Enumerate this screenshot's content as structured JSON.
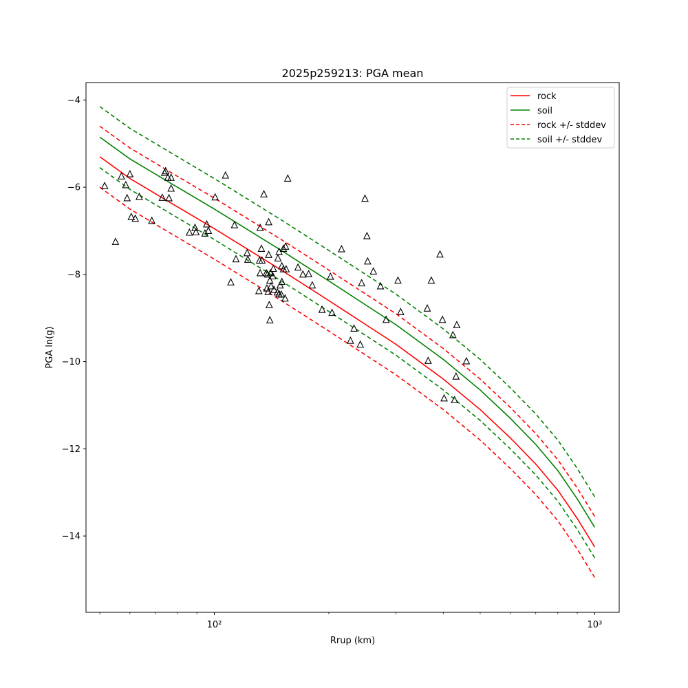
{
  "chart_data": {
    "type": "scatter",
    "title": "2025p259213: PGA mean",
    "xlabel": "Rrup (km)",
    "ylabel": "PGA ln(g)",
    "xscale": "log",
    "xlim": [
      46,
      1160
    ],
    "ylim": [
      -15.75,
      -3.6
    ],
    "x_ticks": [
      {
        "value": 100,
        "label": "10²"
      },
      {
        "value": 1000,
        "label": "10³"
      }
    ],
    "y_ticks": [
      {
        "value": -14,
        "label": "−14"
      },
      {
        "value": -12,
        "label": "−12"
      },
      {
        "value": -10,
        "label": "−10"
      },
      {
        "value": -8,
        "label": "−8"
      },
      {
        "value": -6,
        "label": "−6"
      },
      {
        "value": -4,
        "label": "−4"
      }
    ],
    "grid": false,
    "legend_position": "top-right",
    "series": [
      {
        "name": "rock",
        "kind": "line",
        "style": "solid",
        "color": "#ff0000",
        "x": [
          50,
          60,
          80,
          100,
          150,
          200,
          300,
          400,
          500,
          600,
          700,
          800,
          900,
          1000
        ],
        "y": [
          -5.3,
          -5.8,
          -6.45,
          -6.95,
          -7.9,
          -8.6,
          -9.6,
          -10.4,
          -11.1,
          -11.75,
          -12.35,
          -12.95,
          -13.6,
          -14.25
        ]
      },
      {
        "name": "soil",
        "kind": "line",
        "style": "solid",
        "color": "#008000",
        "x": [
          50,
          60,
          80,
          100,
          150,
          200,
          300,
          400,
          500,
          600,
          700,
          800,
          900,
          1000
        ],
        "y": [
          -4.85,
          -5.35,
          -6.0,
          -6.5,
          -7.45,
          -8.15,
          -9.15,
          -9.95,
          -10.65,
          -11.3,
          -11.9,
          -12.5,
          -13.15,
          -13.8
        ]
      },
      {
        "name": "rock +/- stddev",
        "kind": "band",
        "style": "dashed",
        "color": "#ff0000",
        "x": [
          50,
          60,
          80,
          100,
          150,
          200,
          300,
          400,
          500,
          600,
          700,
          800,
          900,
          1000
        ],
        "upper": [
          -4.6,
          -5.1,
          -5.75,
          -6.25,
          -7.2,
          -7.9,
          -8.9,
          -9.7,
          -10.4,
          -11.05,
          -11.65,
          -12.25,
          -12.9,
          -13.55
        ],
        "lower": [
          -6.0,
          -6.5,
          -7.15,
          -7.65,
          -8.6,
          -9.3,
          -10.3,
          -11.1,
          -11.8,
          -12.45,
          -13.05,
          -13.65,
          -14.3,
          -14.95
        ]
      },
      {
        "name": "soil +/- stddev",
        "kind": "band",
        "style": "dashed",
        "color": "#008000",
        "x": [
          50,
          60,
          80,
          100,
          150,
          200,
          300,
          400,
          500,
          600,
          700,
          800,
          900,
          1000
        ],
        "upper": [
          -4.15,
          -4.65,
          -5.3,
          -5.8,
          -6.75,
          -7.45,
          -8.45,
          -9.25,
          -9.95,
          -10.6,
          -11.2,
          -11.8,
          -12.45,
          -13.1
        ],
        "lower": [
          -5.55,
          -6.05,
          -6.7,
          -7.2,
          -8.15,
          -8.85,
          -9.85,
          -10.65,
          -11.35,
          -12.0,
          -12.6,
          -13.2,
          -13.85,
          -14.5
        ]
      }
    ],
    "observations": {
      "marker": "triangle",
      "color": "#000000",
      "points": [
        [
          51.5,
          -5.97
        ],
        [
          55,
          -7.25
        ],
        [
          57,
          -5.75
        ],
        [
          58.5,
          -5.95
        ],
        [
          59,
          -6.25
        ],
        [
          60,
          -5.7
        ],
        [
          60.5,
          -6.68
        ],
        [
          62,
          -6.72
        ],
        [
          63.5,
          -6.22
        ],
        [
          68.5,
          -6.77
        ],
        [
          73,
          -6.24
        ],
        [
          74,
          -5.67
        ],
        [
          74.5,
          -5.63
        ],
        [
          75.5,
          -5.78
        ],
        [
          76,
          -6.25
        ],
        [
          77,
          -5.78
        ],
        [
          77,
          -6.03
        ],
        [
          86,
          -7.04
        ],
        [
          89,
          -6.93
        ],
        [
          89.5,
          -7.03
        ],
        [
          94.5,
          -7.06
        ],
        [
          95.5,
          -6.85
        ],
        [
          96.5,
          -7.0
        ],
        [
          100.5,
          -6.23
        ],
        [
          107,
          -5.73
        ],
        [
          110.5,
          -8.18
        ],
        [
          113,
          -6.87
        ],
        [
          114,
          -7.65
        ],
        [
          122,
          -7.51
        ],
        [
          122.5,
          -7.66
        ],
        [
          131,
          -8.38
        ],
        [
          131.5,
          -7.68
        ],
        [
          132,
          -7.97
        ],
        [
          132,
          -6.93
        ],
        [
          133,
          -7.41
        ],
        [
          133.5,
          -7.68
        ],
        [
          135,
          -6.16
        ],
        [
          137,
          -7.97
        ],
        [
          137.5,
          -8.32
        ],
        [
          138,
          -8.0
        ],
        [
          138.5,
          -8.4
        ],
        [
          139,
          -7.55
        ],
        [
          139,
          -6.8
        ],
        [
          139.5,
          -8.7
        ],
        [
          140,
          -9.05
        ],
        [
          140,
          -8.14
        ],
        [
          140.5,
          -7.97
        ],
        [
          141,
          -8.27
        ],
        [
          142.5,
          -8.04
        ],
        [
          143,
          -7.87
        ],
        [
          143.5,
          -8.35
        ],
        [
          146.5,
          -8.41
        ],
        [
          147,
          -7.63
        ],
        [
          148,
          -8.45
        ],
        [
          148,
          -7.48
        ],
        [
          149,
          -8.25
        ],
        [
          150,
          -8.46
        ],
        [
          150.5,
          -7.81
        ],
        [
          150.5,
          -8.17
        ],
        [
          152,
          -7.88
        ],
        [
          152,
          -7.41
        ],
        [
          153.5,
          -8.55
        ],
        [
          154,
          -7.36
        ],
        [
          154.5,
          -7.88
        ],
        [
          156,
          -5.8
        ],
        [
          166,
          -7.84
        ],
        [
          171,
          -8.0
        ],
        [
          177,
          -7.99
        ],
        [
          181,
          -8.25
        ],
        [
          192,
          -8.81
        ],
        [
          202,
          -8.05
        ],
        [
          204,
          -8.88
        ],
        [
          216,
          -7.42
        ],
        [
          228,
          -9.52
        ],
        [
          233,
          -9.24
        ],
        [
          242,
          -9.61
        ],
        [
          244,
          -8.2
        ],
        [
          249,
          -6.26
        ],
        [
          252,
          -7.12
        ],
        [
          253,
          -7.7
        ],
        [
          262,
          -7.93
        ],
        [
          273.5,
          -8.27
        ],
        [
          283,
          -9.04
        ],
        [
          304,
          -8.14
        ],
        [
          309,
          -8.86
        ],
        [
          363,
          -8.78
        ],
        [
          365,
          -9.98
        ],
        [
          372,
          -8.14
        ],
        [
          392,
          -7.54
        ],
        [
          398,
          -9.04
        ],
        [
          402,
          -10.84
        ],
        [
          424,
          -9.39
        ],
        [
          428,
          -10.88
        ],
        [
          432,
          -10.34
        ],
        [
          434,
          -9.16
        ],
        [
          460,
          -9.99
        ]
      ]
    }
  }
}
